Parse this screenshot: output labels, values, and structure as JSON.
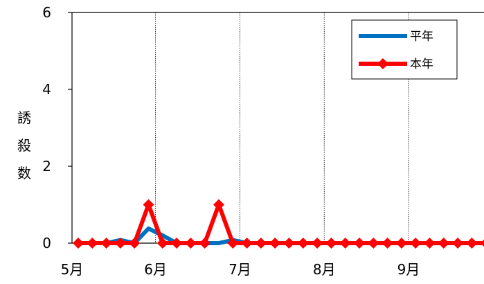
{
  "chart_data": {
    "type": "line",
    "ylabel": "誘殺数",
    "ylim": [
      0,
      6
    ],
    "yticks": [
      0,
      2,
      4,
      6
    ],
    "xlabels": [
      "5月",
      "6月",
      "7月",
      "8月",
      "9月"
    ],
    "month_boundary_indices": [
      0,
      6,
      12,
      18,
      24
    ],
    "grid_vertical": "dotted at month boundaries",
    "legend_position": "top-right",
    "series": [
      {
        "name": "平年",
        "color": "#0070C0",
        "marker": "none",
        "values": [
          0,
          0,
          0,
          0.08,
          0,
          0.38,
          0.2,
          0,
          0,
          0,
          0,
          0.08,
          0,
          0,
          0,
          0,
          0,
          0,
          0,
          0,
          0,
          0,
          0,
          0,
          0,
          0,
          0,
          0,
          0,
          0
        ]
      },
      {
        "name": "本年",
        "color": "#FF0000",
        "marker": "diamond",
        "values": [
          0,
          0,
          0,
          0,
          0,
          1,
          0,
          0,
          0,
          0,
          1,
          0,
          0,
          0,
          0,
          0,
          0,
          0,
          0,
          0,
          0,
          0,
          0,
          0,
          0,
          0,
          0,
          0,
          0,
          0
        ]
      }
    ]
  }
}
